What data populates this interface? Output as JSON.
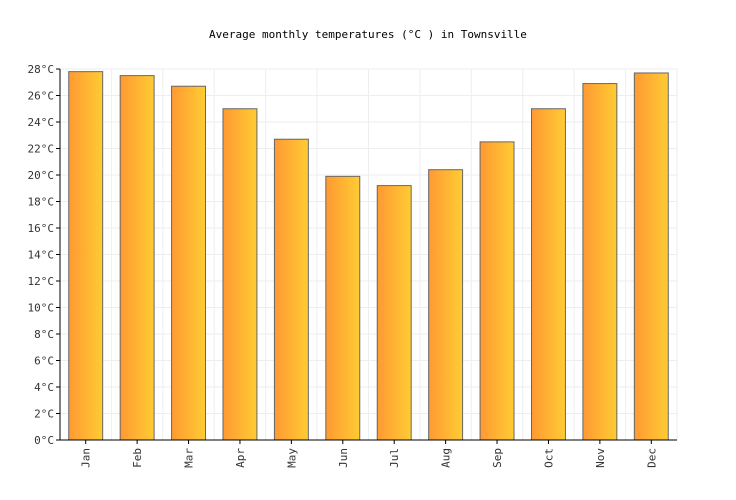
{
  "chart_data": {
    "type": "bar",
    "title": "Average monthly temperatures (°C ) in Townsville",
    "xlabel": "",
    "ylabel": "",
    "categories": [
      "Jan",
      "Feb",
      "Mar",
      "Apr",
      "May",
      "Jun",
      "Jul",
      "Aug",
      "Sep",
      "Oct",
      "Nov",
      "Dec"
    ],
    "values": [
      27.8,
      27.5,
      26.7,
      25.0,
      22.7,
      19.9,
      19.2,
      20.4,
      22.5,
      25.0,
      26.9,
      27.7
    ],
    "ylim": [
      0,
      28
    ],
    "yticks": [
      "0°C",
      "2°C",
      "4°C",
      "6°C",
      "8°C",
      "10°C",
      "12°C",
      "14°C",
      "16°C",
      "18°C",
      "20°C",
      "22°C",
      "24°C",
      "26°C",
      "28°C"
    ],
    "grid": true,
    "legend": "none",
    "colors": {
      "bar_start": "#ff9933",
      "bar_end": "#ffcc33",
      "bar_stroke": "#666666",
      "grid": "#eeeeee",
      "axis": "#000000"
    }
  }
}
